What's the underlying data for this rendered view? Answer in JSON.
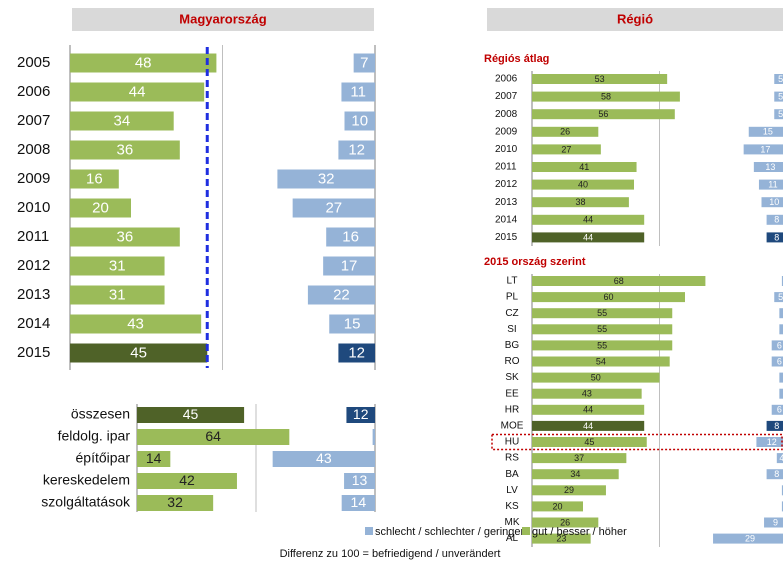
{
  "headers": [
    "Magyarország",
    "Régió"
  ],
  "note": "Differenz zu 100 = befriedigend / unverändert",
  "chart_data": [
    {
      "type": "diverging-bar",
      "categories": [
        "2005",
        "2006",
        "2007",
        "2008",
        "2009",
        "2010",
        "2011",
        "2012",
        "2013",
        "2014",
        "2015"
      ],
      "series": [
        {
          "name": "schlecht / schlechter / geringer",
          "color": "#95b3d7",
          "highlight_color": "#1f497d",
          "side": "right",
          "values": [
            7,
            11,
            10,
            12,
            32,
            27,
            16,
            17,
            22,
            15,
            12
          ]
        },
        {
          "name": "gut / besser / höher",
          "color": "#9bbb59",
          "highlight_color": "#4f6228",
          "side": "left",
          "values": [
            48,
            44,
            34,
            36,
            16,
            20,
            36,
            31,
            31,
            43,
            45
          ]
        }
      ],
      "highlight": "2015",
      "xlim": [
        0,
        100
      ],
      "gridlines": [
        0,
        50,
        100
      ],
      "reference_line": 45,
      "reference_color": "#1f2fe0"
    },
    {
      "type": "diverging-bar",
      "categories": [
        "összesen",
        "feldolg. ipar",
        "építőipar",
        "kereskedelem",
        "szolgáltatások"
      ],
      "series": [
        {
          "name": "schlecht / schlechter / geringer",
          "color": "#95b3d7",
          "highlight_color": "#1f497d",
          "side": "right",
          "values": [
            12,
            1,
            43,
            13,
            14
          ]
        },
        {
          "name": "gut / besser / höher",
          "color": "#9bbb59",
          "highlight_color": "#4f6228",
          "side": "left",
          "values": [
            45,
            64,
            14,
            42,
            32
          ]
        }
      ],
      "highlight": "összesen",
      "xlim": [
        0,
        100
      ],
      "gridlines": [
        0,
        50,
        100
      ]
    },
    {
      "type": "diverging-bar",
      "title": "Régiós átlag",
      "categories": [
        "2006",
        "2007",
        "2008",
        "2009",
        "2010",
        "2011",
        "2012",
        "2013",
        "2014",
        "2015"
      ],
      "series": [
        {
          "name": "schlecht / schlechter / geringer",
          "color": "#95b3d7",
          "highlight_color": "#1f497d",
          "side": "right",
          "values": [
            5,
            5,
            5,
            15,
            17,
            13,
            11,
            10,
            8,
            8
          ]
        },
        {
          "name": "gut / besser / höher",
          "color": "#9bbb59",
          "highlight_color": "#4f6228",
          "side": "left",
          "values": [
            53,
            58,
            56,
            26,
            27,
            41,
            40,
            38,
            44,
            44
          ]
        }
      ],
      "highlight": "2015",
      "xlim": [
        0,
        100
      ],
      "gridlines": [
        0,
        50,
        100
      ]
    },
    {
      "type": "diverging-bar",
      "title": "2015 ország szerint",
      "categories": [
        "LT",
        "PL",
        "CZ",
        "SI",
        "BG",
        "RO",
        "SK",
        "EE",
        "HR",
        "MOE",
        "HU",
        "RS",
        "BA",
        "LV",
        "KS",
        "MK",
        "AL"
      ],
      "series": [
        {
          "name": "schlecht / schlechter / geringer",
          "color": "#95b3d7",
          "highlight_color": "#1f497d",
          "side": "right",
          "values": [
            2,
            5,
            3,
            3,
            6,
            6,
            3,
            3,
            6,
            8,
            12,
            4,
            8,
            2,
            2,
            9,
            29
          ]
        },
        {
          "name": "gut / besser / höher",
          "color": "#9bbb59",
          "highlight_color": "#4f6228",
          "side": "left",
          "values": [
            68,
            60,
            55,
            55,
            55,
            54,
            50,
            43,
            44,
            44,
            45,
            37,
            34,
            29,
            20,
            26,
            23
          ]
        }
      ],
      "highlight": "MOE",
      "outlined": "HU",
      "outline_color": "#c00000",
      "xlim": [
        0,
        100
      ],
      "gridlines": [
        0,
        50,
        100
      ]
    }
  ]
}
